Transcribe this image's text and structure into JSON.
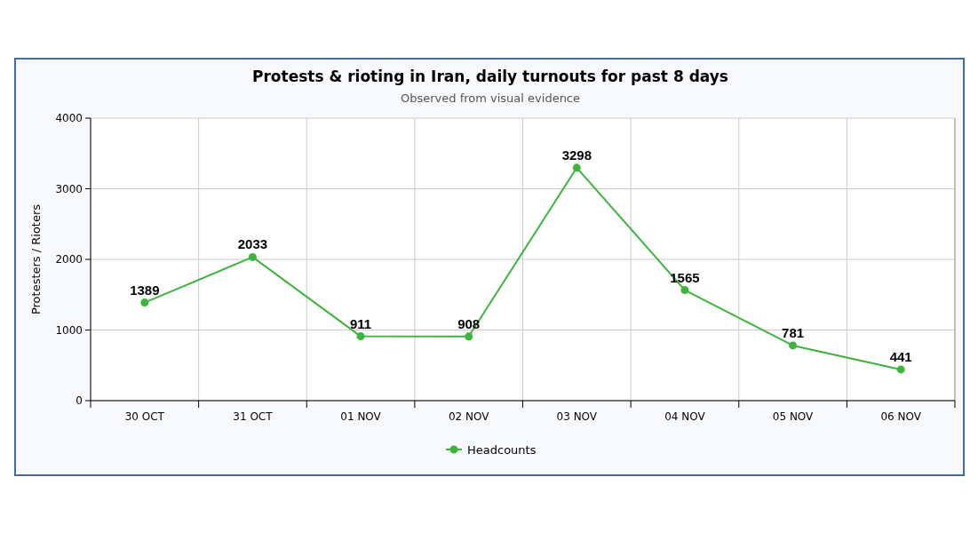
{
  "chart_data": {
    "type": "line",
    "title": "Protests & rioting in Iran, daily turnouts for past 8 days",
    "subtitle": "Observed from visual evidence",
    "ylabel": "Protesters / Rioters",
    "categories": [
      "30 OCT",
      "31 OCT",
      "01 NOV",
      "02 NOV",
      "03 NOV",
      "04 NOV",
      "05 NOV",
      "06 NOV"
    ],
    "series": [
      {
        "name": "Headcounts",
        "color": "#3db53d",
        "values": [
          1389,
          2033,
          911,
          908,
          3298,
          1565,
          781,
          441
        ]
      }
    ],
    "ylim": [
      0,
      4000
    ],
    "yticks": [
      0,
      1000,
      2000,
      3000,
      4000
    ],
    "grid": true,
    "legend": "bottom",
    "marker": "circle",
    "line_style": "solid",
    "data_labels": true
  }
}
